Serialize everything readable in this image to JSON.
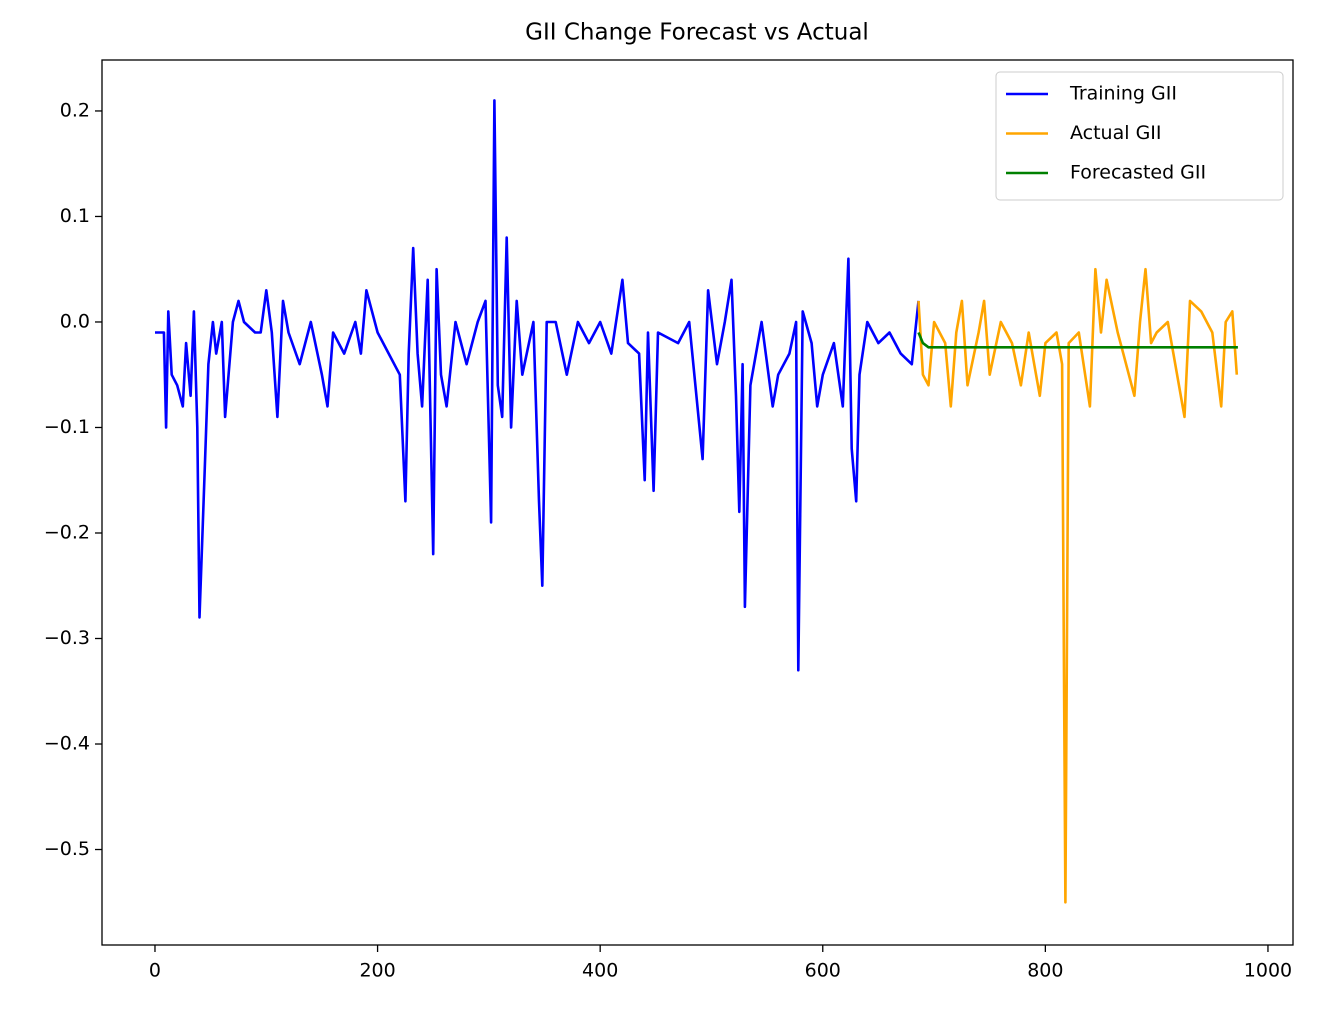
{
  "chart_data": {
    "type": "line",
    "title": "GII Change Forecast vs Actual",
    "xlim": [
      -47.6,
      1022.5
    ],
    "ylim": [
      -0.5905,
      0.2483
    ],
    "xticks": [
      0,
      200,
      400,
      600,
      800,
      1000
    ],
    "yticks": [
      {
        "value": -0.5,
        "label": "−0.5"
      },
      {
        "value": -0.4,
        "label": "−0.4"
      },
      {
        "value": -0.3,
        "label": "−0.3"
      },
      {
        "value": -0.2,
        "label": "−0.2"
      },
      {
        "value": -0.1,
        "label": "−0.1"
      },
      {
        "value": 0,
        "label": "0.0"
      },
      0.1,
      0.2
    ],
    "grid": false,
    "legend": "upper right",
    "series": [
      {
        "name": "Training GII",
        "color": "#0000ff",
        "x": [
          0,
          8,
          10,
          12,
          15,
          20,
          25,
          28,
          32,
          35,
          38,
          40,
          45,
          48,
          52,
          55,
          60,
          63,
          70,
          75,
          80,
          90,
          95,
          100,
          105,
          110,
          115,
          120,
          130,
          140,
          150,
          155,
          160,
          170,
          180,
          185,
          190,
          200,
          210,
          220,
          225,
          228,
          232,
          236,
          240,
          245,
          250,
          253,
          257,
          262,
          270,
          280,
          290,
          297,
          302,
          305,
          308,
          312,
          316,
          320,
          325,
          330,
          340,
          345,
          348,
          352,
          360,
          370,
          380,
          390,
          400,
          410,
          420,
          425,
          435,
          440,
          443,
          448,
          452,
          470,
          480,
          492,
          497,
          505,
          512,
          518,
          522,
          525,
          528,
          530,
          535,
          545,
          555,
          560,
          570,
          576,
          578,
          582,
          590,
          595,
          600,
          610,
          618,
          623,
          626,
          630,
          633,
          640,
          650,
          660,
          670,
          680,
          686
        ],
        "values": [
          -0.01,
          -0.01,
          -0.1,
          0.01,
          -0.05,
          -0.06,
          -0.08,
          -0.02,
          -0.07,
          0.01,
          -0.1,
          -0.28,
          -0.13,
          -0.04,
          0.0,
          -0.03,
          0.0,
          -0.09,
          0.0,
          0.02,
          0.0,
          -0.01,
          -0.01,
          0.03,
          -0.01,
          -0.09,
          0.02,
          -0.01,
          -0.04,
          0.0,
          -0.05,
          -0.08,
          -0.01,
          -0.03,
          0.0,
          -0.03,
          0.03,
          -0.01,
          -0.03,
          -0.05,
          -0.17,
          -0.03,
          0.07,
          -0.03,
          -0.08,
          0.04,
          -0.22,
          0.05,
          -0.05,
          -0.08,
          0.0,
          -0.04,
          0.0,
          0.02,
          -0.19,
          0.21,
          -0.06,
          -0.09,
          0.08,
          -0.1,
          0.02,
          -0.05,
          0.0,
          -0.17,
          -0.25,
          0.0,
          0.0,
          -0.05,
          0.0,
          -0.02,
          0.0,
          -0.03,
          0.04,
          -0.02,
          -0.03,
          -0.15,
          -0.01,
          -0.16,
          -0.01,
          -0.02,
          0.0,
          -0.13,
          0.03,
          -0.04,
          0.0,
          0.04,
          -0.07,
          -0.18,
          -0.04,
          -0.27,
          -0.06,
          0.0,
          -0.08,
          -0.05,
          -0.03,
          0.0,
          -0.33,
          0.01,
          -0.02,
          -0.08,
          -0.05,
          -0.02,
          -0.08,
          0.06,
          -0.12,
          -0.17,
          -0.05,
          0.0,
          -0.02,
          -0.01,
          -0.03,
          -0.04,
          0.02
        ]
      },
      {
        "name": "Actual GII",
        "color": "#ffa500",
        "x": [
          686,
          690,
          695,
          700,
          710,
          715,
          720,
          725,
          730,
          740,
          745,
          750,
          760,
          770,
          778,
          785,
          790,
          795,
          800,
          810,
          815,
          818,
          821,
          830,
          840,
          845,
          850,
          855,
          865,
          870,
          880,
          885,
          890,
          895,
          900,
          910,
          915,
          925,
          930,
          940,
          950,
          958,
          962,
          968,
          972
        ],
        "values": [
          0.02,
          -0.05,
          -0.06,
          0.0,
          -0.02,
          -0.08,
          -0.01,
          0.02,
          -0.06,
          -0.01,
          0.02,
          -0.05,
          0.0,
          -0.02,
          -0.06,
          -0.01,
          -0.04,
          -0.07,
          -0.02,
          -0.01,
          -0.04,
          -0.55,
          -0.02,
          -0.01,
          -0.08,
          0.05,
          -0.01,
          0.04,
          -0.01,
          -0.03,
          -0.07,
          0.0,
          0.05,
          -0.02,
          -0.01,
          0.0,
          -0.03,
          -0.09,
          0.02,
          0.01,
          -0.01,
          -0.08,
          0.0,
          0.01,
          -0.05
        ]
      },
      {
        "name": "Forecasted GII",
        "color": "#008000",
        "x": [
          686,
          690,
          695,
          973
        ],
        "values": [
          -0.01,
          -0.02,
          -0.024,
          -0.024
        ]
      }
    ]
  }
}
